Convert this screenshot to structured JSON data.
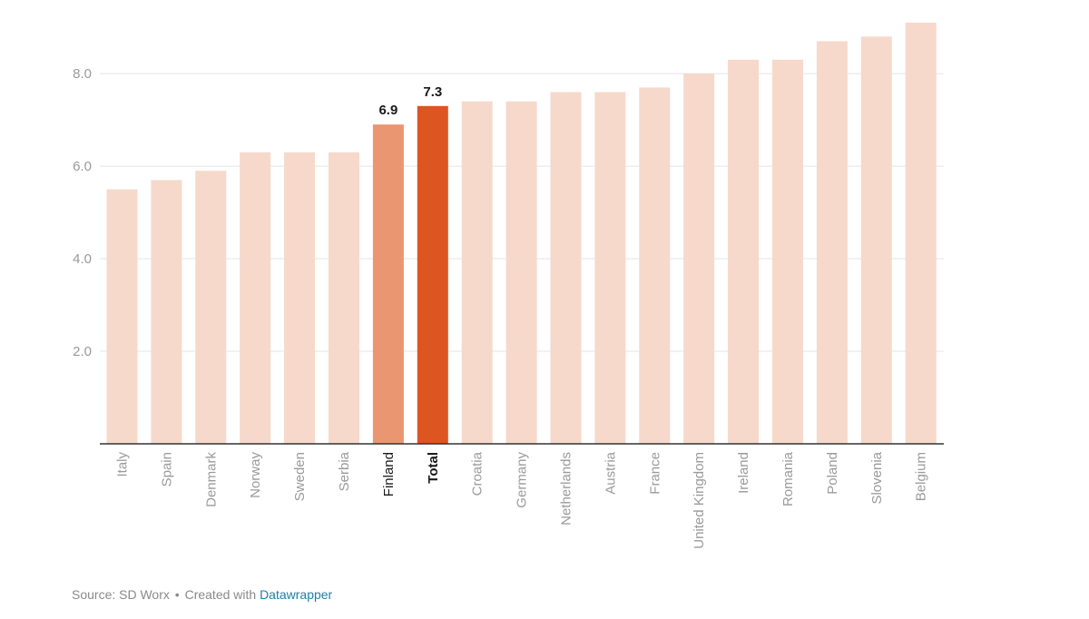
{
  "chart_data": {
    "type": "bar",
    "title": "",
    "xlabel": "",
    "ylabel": "",
    "ylim": [
      0,
      9.1
    ],
    "yticks": [
      2.0,
      4.0,
      6.0,
      8.0
    ],
    "ytick_labels": [
      "2.0",
      "4.0",
      "6.0",
      "8.0"
    ],
    "grid": true,
    "categories": [
      "Italy",
      "Spain",
      "Denmark",
      "Norway",
      "Sweden",
      "Serbia",
      "Finland",
      "Total",
      "Croatia",
      "Germany",
      "Netherlands",
      "Austria",
      "France",
      "United Kingdom",
      "Ireland",
      "Romania",
      "Poland",
      "Slovenia",
      "Belgium"
    ],
    "values": [
      5.5,
      5.7,
      5.9,
      6.3,
      6.3,
      6.3,
      6.9,
      7.3,
      7.4,
      7.4,
      7.6,
      7.6,
      7.7,
      8.0,
      8.3,
      8.3,
      8.7,
      8.8,
      9.1
    ],
    "highlighted": {
      "Finland": {
        "color": "#ea9670",
        "value_label": "6.9"
      },
      "Total": {
        "color": "#dd5520",
        "value_label": "7.3"
      }
    },
    "colors": {
      "default_bar": "#f6d9cb",
      "gridline": "#e4e4e4",
      "baseline": "#333333",
      "tick_text": "#9a9a9a",
      "highlight_text": "#1a1a1a"
    }
  },
  "footer": {
    "source_text": "Source: SD Worx",
    "separator": "•",
    "created_text": "Created with",
    "tool_link": "Datawrapper"
  }
}
